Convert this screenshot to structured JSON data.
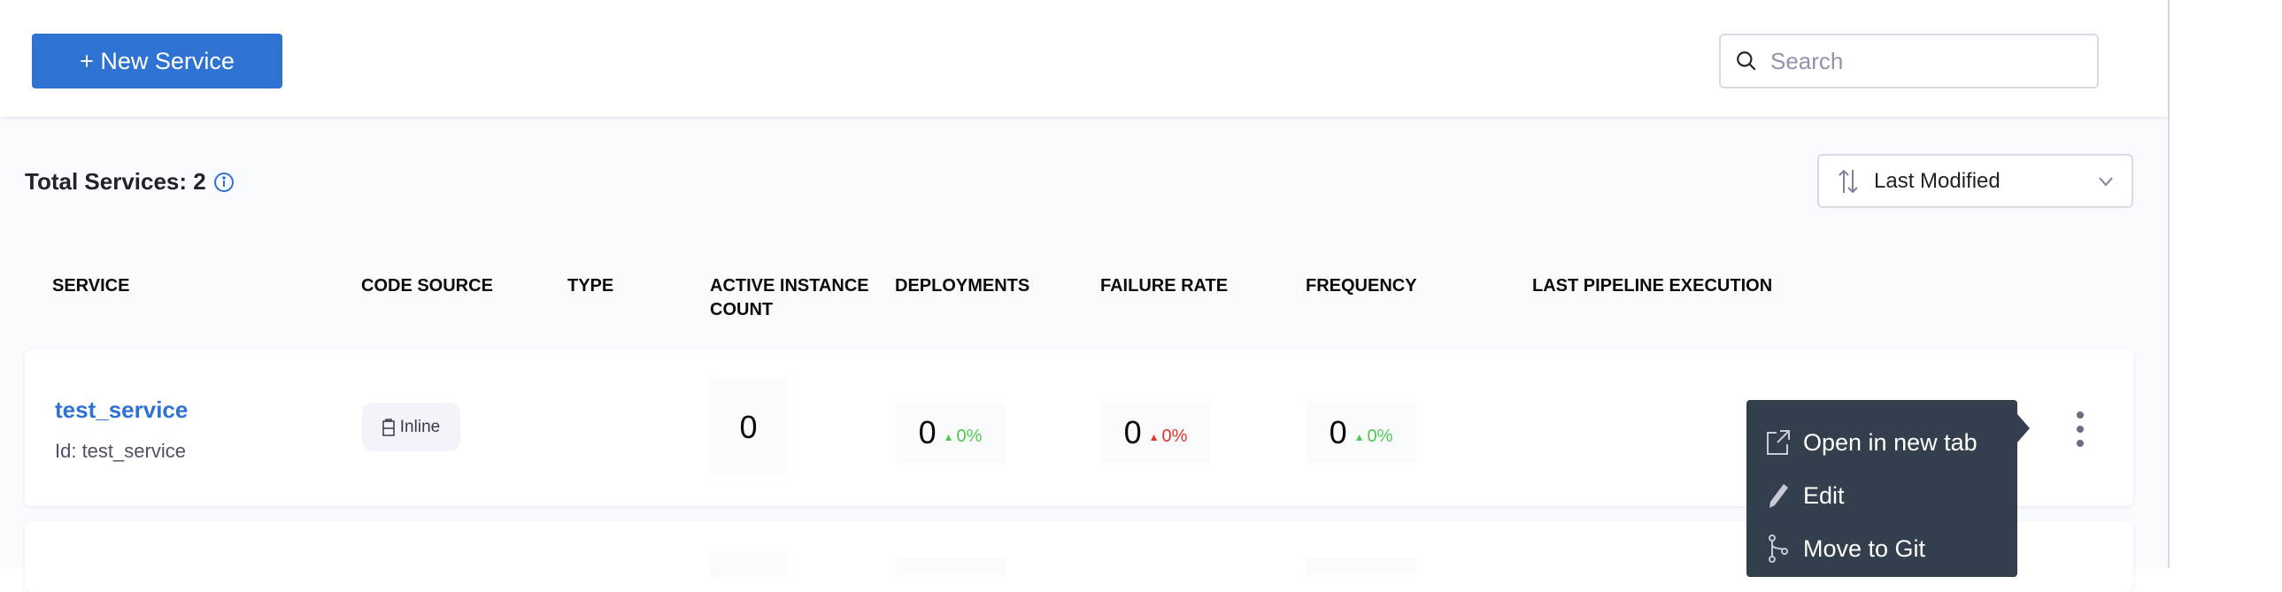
{
  "toolbar": {
    "new_service_label": "+ New Service",
    "search_placeholder": "Search"
  },
  "summary": {
    "total_label": "Total Services: 2",
    "sort_label": "Last Modified"
  },
  "table": {
    "headers": [
      "SERVICE",
      "CODE SOURCE",
      "TYPE",
      "ACTIVE INSTANCE COUNT",
      "DEPLOYMENTS",
      "FAILURE RATE",
      "FREQUENCY",
      "LAST PIPELINE EXECUTION"
    ],
    "rows": [
      {
        "name": "test_service",
        "id": "Id: test_service",
        "code_source": "Inline",
        "type": "",
        "active_instance_count": "0",
        "deployments": {
          "value": "0",
          "change": "0%",
          "trend": "up",
          "color": "#4dc952"
        },
        "failure_rate": {
          "value": "0",
          "change": "0%",
          "trend": "up",
          "color": "#e43326"
        },
        "frequency": {
          "value": "0",
          "change": "0%",
          "trend": "up",
          "color": "#4dc952"
        },
        "last_pipeline_execution": ""
      }
    ]
  },
  "context_menu": {
    "items": [
      {
        "label": "Open in new tab",
        "icon": "external-link-icon"
      },
      {
        "label": "Edit",
        "icon": "pencil-icon"
      },
      {
        "label": "Move to Git",
        "icon": "git-branch-icon"
      }
    ]
  }
}
